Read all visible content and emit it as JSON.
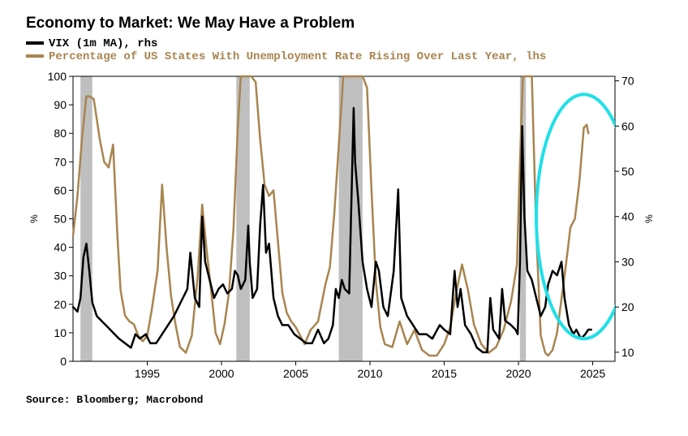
{
  "title": "Economy to Market: We May Have a Problem",
  "legend": {
    "vix": {
      "label": "VIX (1m MA), rhs",
      "color": "#000000",
      "line_width": 2.5
    },
    "unemp": {
      "label": "Percentage of US States With Unemployment Rate Rising Over Last Year, lhs",
      "color": "#a8854f",
      "line_width": 2.5
    }
  },
  "source": "Source: Bloomberg; Macrobond",
  "chart": {
    "type": "dual-axis-line",
    "background_color": "#ffffff",
    "plot_border_color": "#000000",
    "plot_border_width": 1,
    "font_family_labels": "Arial",
    "label_fontsize": 14,
    "x": {
      "domain": [
        1990,
        2026.5
      ],
      "ticks": [
        1995,
        2000,
        2005,
        2010,
        2015,
        2020,
        2025
      ]
    },
    "y_left": {
      "label": "%",
      "domain": [
        0,
        100
      ],
      "ticks": [
        0,
        10,
        20,
        30,
        40,
        50,
        60,
        70,
        80,
        90,
        100
      ]
    },
    "y_right": {
      "label": "%",
      "domain": [
        8,
        71
      ],
      "ticks": [
        10,
        20,
        30,
        40,
        50,
        60,
        70
      ]
    },
    "recession_bands": {
      "color": "#bfbfbf",
      "ranges": [
        [
          1990.5,
          1991.3
        ],
        [
          2001.0,
          2001.9
        ],
        [
          2007.9,
          2009.5
        ],
        [
          2020.1,
          2020.5
        ]
      ]
    },
    "highlight_ellipse": {
      "stroke": "#1fe0e8",
      "stroke_width": 4,
      "cx_year": 2024.4,
      "cy_right_val": 40,
      "rx_years": 3.2,
      "ry_right_val": 27
    },
    "series": {
      "unemp": {
        "axis": "left",
        "color": "#a8854f",
        "points": [
          [
            1990.0,
            44
          ],
          [
            1990.3,
            58
          ],
          [
            1990.6,
            78
          ],
          [
            1990.9,
            93
          ],
          [
            1991.1,
            93
          ],
          [
            1991.4,
            92
          ],
          [
            1991.8,
            78
          ],
          [
            1992.1,
            70
          ],
          [
            1992.4,
            68
          ],
          [
            1992.7,
            76
          ],
          [
            1993.0,
            43
          ],
          [
            1993.2,
            25
          ],
          [
            1993.5,
            16
          ],
          [
            1993.8,
            14
          ],
          [
            1994.1,
            13
          ],
          [
            1994.4,
            9
          ],
          [
            1994.7,
            7
          ],
          [
            1995.0,
            9
          ],
          [
            1995.3,
            18
          ],
          [
            1995.7,
            32
          ],
          [
            1996.0,
            62
          ],
          [
            1996.3,
            40
          ],
          [
            1996.6,
            23
          ],
          [
            1996.9,
            13
          ],
          [
            1997.2,
            5
          ],
          [
            1997.6,
            3
          ],
          [
            1998.0,
            9
          ],
          [
            1998.4,
            30
          ],
          [
            1998.7,
            55
          ],
          [
            1999.0,
            39
          ],
          [
            1999.3,
            25
          ],
          [
            1999.6,
            10
          ],
          [
            1999.9,
            6
          ],
          [
            2000.2,
            13
          ],
          [
            2000.5,
            24
          ],
          [
            2000.8,
            46
          ],
          [
            2001.1,
            82
          ],
          [
            2001.3,
            100
          ],
          [
            2001.7,
            100
          ],
          [
            2002.0,
            100
          ],
          [
            2002.3,
            98
          ],
          [
            2002.6,
            78
          ],
          [
            2002.9,
            62
          ],
          [
            2003.2,
            58
          ],
          [
            2003.5,
            60
          ],
          [
            2003.8,
            42
          ],
          [
            2004.1,
            24
          ],
          [
            2004.4,
            17
          ],
          [
            2004.7,
            14
          ],
          [
            2005.0,
            12
          ],
          [
            2005.6,
            6
          ],
          [
            2006.0,
            11
          ],
          [
            2006.5,
            14
          ],
          [
            2007.0,
            27
          ],
          [
            2007.3,
            33
          ],
          [
            2007.6,
            52
          ],
          [
            2007.9,
            76
          ],
          [
            2008.2,
            100
          ],
          [
            2008.6,
            100
          ],
          [
            2009.0,
            100
          ],
          [
            2009.5,
            100
          ],
          [
            2009.8,
            96
          ],
          [
            2010.1,
            60
          ],
          [
            2010.4,
            28
          ],
          [
            2010.7,
            12
          ],
          [
            2011.0,
            6
          ],
          [
            2011.5,
            5
          ],
          [
            2012.0,
            14
          ],
          [
            2012.5,
            6
          ],
          [
            2013.0,
            11
          ],
          [
            2013.5,
            4
          ],
          [
            2014.0,
            2
          ],
          [
            2014.5,
            2
          ],
          [
            2015.0,
            6
          ],
          [
            2015.4,
            12
          ],
          [
            2015.8,
            24
          ],
          [
            2016.2,
            34
          ],
          [
            2016.6,
            25
          ],
          [
            2017.0,
            13
          ],
          [
            2017.5,
            6
          ],
          [
            2018.0,
            3
          ],
          [
            2018.5,
            5
          ],
          [
            2019.0,
            11
          ],
          [
            2019.5,
            21
          ],
          [
            2019.9,
            34
          ],
          [
            2020.1,
            70
          ],
          [
            2020.3,
            100
          ],
          [
            2020.6,
            100
          ],
          [
            2020.9,
            100
          ],
          [
            2021.2,
            45
          ],
          [
            2021.5,
            9
          ],
          [
            2021.8,
            3
          ],
          [
            2022.0,
            2
          ],
          [
            2022.3,
            4
          ],
          [
            2022.6,
            10
          ],
          [
            2022.9,
            22
          ],
          [
            2023.2,
            34
          ],
          [
            2023.5,
            47
          ],
          [
            2023.8,
            50
          ],
          [
            2024.1,
            63
          ],
          [
            2024.4,
            82
          ],
          [
            2024.6,
            83
          ],
          [
            2024.7,
            80
          ]
        ]
      },
      "vix": {
        "axis": "right",
        "color": "#000000",
        "points": [
          [
            1990.0,
            20
          ],
          [
            1990.3,
            19
          ],
          [
            1990.5,
            22
          ],
          [
            1990.7,
            31
          ],
          [
            1990.9,
            34
          ],
          [
            1991.1,
            28
          ],
          [
            1991.3,
            21
          ],
          [
            1991.6,
            18
          ],
          [
            1991.9,
            17
          ],
          [
            1992.2,
            16
          ],
          [
            1992.5,
            15
          ],
          [
            1992.8,
            14
          ],
          [
            1993.1,
            13
          ],
          [
            1993.5,
            12
          ],
          [
            1993.9,
            11
          ],
          [
            1994.2,
            14
          ],
          [
            1994.5,
            13
          ],
          [
            1994.9,
            14
          ],
          [
            1995.2,
            12
          ],
          [
            1995.6,
            12
          ],
          [
            1996.0,
            14
          ],
          [
            1996.4,
            16
          ],
          [
            1996.8,
            18
          ],
          [
            1997.1,
            20
          ],
          [
            1997.4,
            22
          ],
          [
            1997.7,
            24
          ],
          [
            1997.9,
            32
          ],
          [
            1998.2,
            22
          ],
          [
            1998.5,
            20
          ],
          [
            1998.7,
            40
          ],
          [
            1998.9,
            30
          ],
          [
            1999.2,
            26
          ],
          [
            1999.5,
            22
          ],
          [
            1999.8,
            24
          ],
          [
            2000.1,
            25
          ],
          [
            2000.4,
            23
          ],
          [
            2000.7,
            24
          ],
          [
            2000.9,
            28
          ],
          [
            2001.1,
            27
          ],
          [
            2001.3,
            24
          ],
          [
            2001.6,
            26
          ],
          [
            2001.8,
            38
          ],
          [
            2001.9,
            30
          ],
          [
            2002.1,
            22
          ],
          [
            2002.4,
            24
          ],
          [
            2002.6,
            38
          ],
          [
            2002.8,
            47
          ],
          [
            2003.0,
            32
          ],
          [
            2003.2,
            34
          ],
          [
            2003.5,
            22
          ],
          [
            2003.8,
            18
          ],
          [
            2004.1,
            16
          ],
          [
            2004.5,
            16
          ],
          [
            2004.9,
            14
          ],
          [
            2005.3,
            13
          ],
          [
            2005.7,
            12
          ],
          [
            2006.1,
            12
          ],
          [
            2006.5,
            15
          ],
          [
            2006.9,
            12
          ],
          [
            2007.2,
            13
          ],
          [
            2007.5,
            16
          ],
          [
            2007.7,
            24
          ],
          [
            2007.9,
            22
          ],
          [
            2008.1,
            26
          ],
          [
            2008.3,
            24
          ],
          [
            2008.6,
            23
          ],
          [
            2008.9,
            64
          ],
          [
            2009.0,
            52
          ],
          [
            2009.2,
            44
          ],
          [
            2009.5,
            30
          ],
          [
            2009.8,
            24
          ],
          [
            2010.1,
            20
          ],
          [
            2010.4,
            30
          ],
          [
            2010.6,
            28
          ],
          [
            2010.9,
            20
          ],
          [
            2011.2,
            18
          ],
          [
            2011.6,
            28
          ],
          [
            2011.8,
            40
          ],
          [
            2011.9,
            46
          ],
          [
            2012.1,
            22
          ],
          [
            2012.5,
            18
          ],
          [
            2012.9,
            16
          ],
          [
            2013.3,
            14
          ],
          [
            2013.8,
            14
          ],
          [
            2014.2,
            13
          ],
          [
            2014.7,
            16
          ],
          [
            2015.0,
            15
          ],
          [
            2015.4,
            14
          ],
          [
            2015.7,
            28
          ],
          [
            2015.9,
            20
          ],
          [
            2016.1,
            24
          ],
          [
            2016.4,
            16
          ],
          [
            2016.8,
            14
          ],
          [
            2017.2,
            11
          ],
          [
            2017.6,
            10
          ],
          [
            2017.9,
            10
          ],
          [
            2018.1,
            22
          ],
          [
            2018.3,
            15
          ],
          [
            2018.7,
            13
          ],
          [
            2018.9,
            24
          ],
          [
            2019.1,
            17
          ],
          [
            2019.5,
            16
          ],
          [
            2019.8,
            15
          ],
          [
            2019.95,
            14
          ],
          [
            2020.1,
            30
          ],
          [
            2020.25,
            60
          ],
          [
            2020.4,
            40
          ],
          [
            2020.6,
            28
          ],
          [
            2020.9,
            26
          ],
          [
            2021.2,
            22
          ],
          [
            2021.5,
            18
          ],
          [
            2021.8,
            20
          ],
          [
            2022.0,
            25
          ],
          [
            2022.3,
            28
          ],
          [
            2022.6,
            27
          ],
          [
            2022.9,
            30
          ],
          [
            2023.1,
            22
          ],
          [
            2023.4,
            16
          ],
          [
            2023.7,
            14
          ],
          [
            2023.9,
            15
          ],
          [
            2024.2,
            13
          ],
          [
            2024.5,
            14
          ],
          [
            2024.7,
            15
          ],
          [
            2024.9,
            15
          ]
        ]
      }
    }
  }
}
